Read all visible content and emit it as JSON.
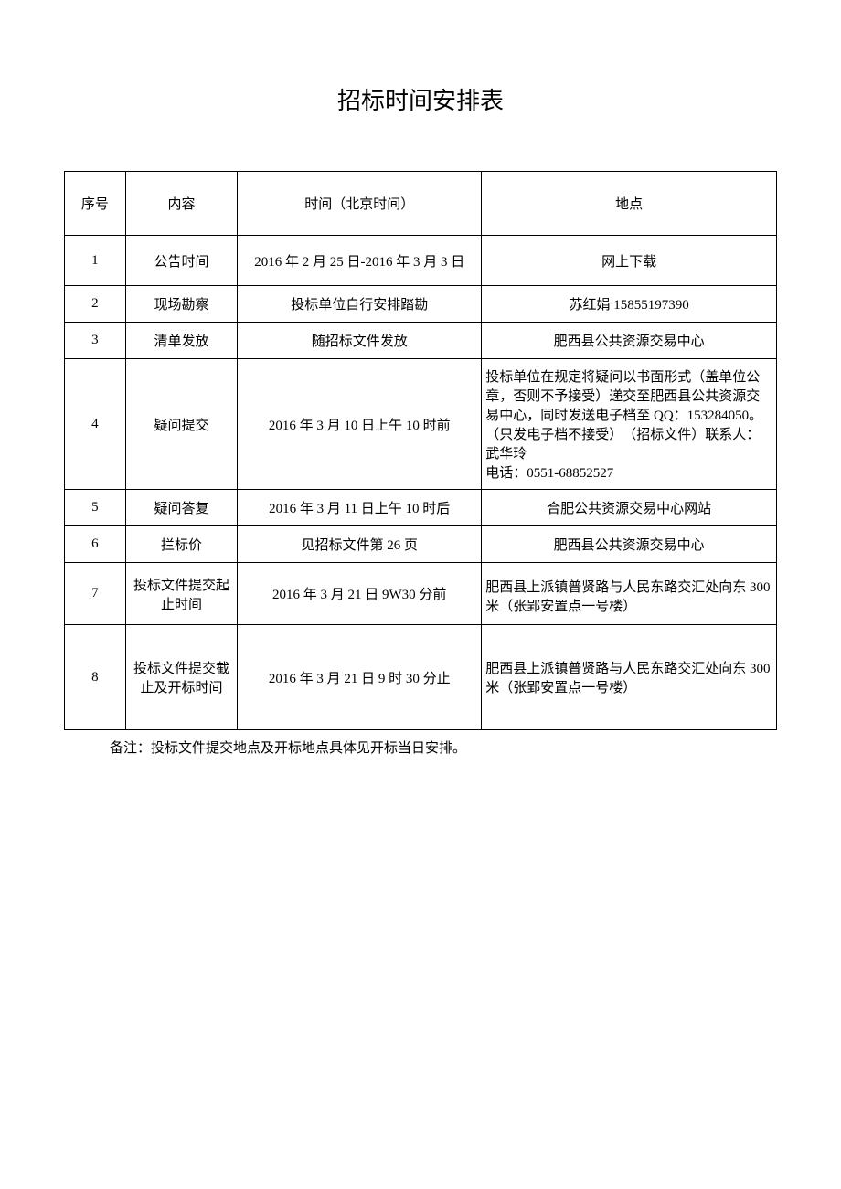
{
  "title": "招标时间安排表",
  "table": {
    "header": {
      "c1": "序号",
      "c2": "内容",
      "c3": "时间（北京时间）",
      "c4": "地点"
    },
    "rows": [
      {
        "c1": "1",
        "c2": "公告时间",
        "c3": "2016 年 2 月 25 日-2016 年 3 月 3 日",
        "c4": "网上下载"
      },
      {
        "c1": "2",
        "c2": "现场勘察",
        "c3": "投标单位自行安排踏勘",
        "c4": "苏红娟 15855197390"
      },
      {
        "c1": "3",
        "c2": "清单发放",
        "c3": "随招标文件发放",
        "c4": "肥西县公共资源交易中心"
      },
      {
        "c1": "4",
        "c2": "疑问提交",
        "c3": "2016 年 3 月 10 日上午 10 时前",
        "c4": "投标单位在规定将疑问以书面形式（盖单位公章，否则不予接受）递交至肥西县公共资源交易中心，同时发送电子档至 QQ：153284050。（只发电子档不接受）　（招标文件）联系人：武华玲\n电话：0551-68852527"
      },
      {
        "c1": "5",
        "c2": "疑问答复",
        "c3": "2016 年 3 月 11 日上午 10 时后",
        "c4": "合肥公共资源交易中心网站"
      },
      {
        "c1": "6",
        "c2": "拦标价",
        "c3": "见招标文件第 26 页",
        "c4": "肥西县公共资源交易中心"
      },
      {
        "c1": "7",
        "c2": "投标文件提交起止时间",
        "c3": "2016 年 3 月 21 日 9W30 分前",
        "c4": "肥西县上派镇普贤路与人民东路交汇处向东 300 米（张郢安置点一号楼）"
      },
      {
        "c1": "8",
        "c2": "投标文件提交截止及开标时间",
        "c3": "2016 年 3 月 21 日 9 时 30 分止",
        "c4": "肥西县上派镇普贤路与人民东路交汇处向东 300 米（张郢安置点一号楼）"
      }
    ]
  },
  "note": "备注：投标文件提交地点及开标地点具体见开标当日安排。"
}
